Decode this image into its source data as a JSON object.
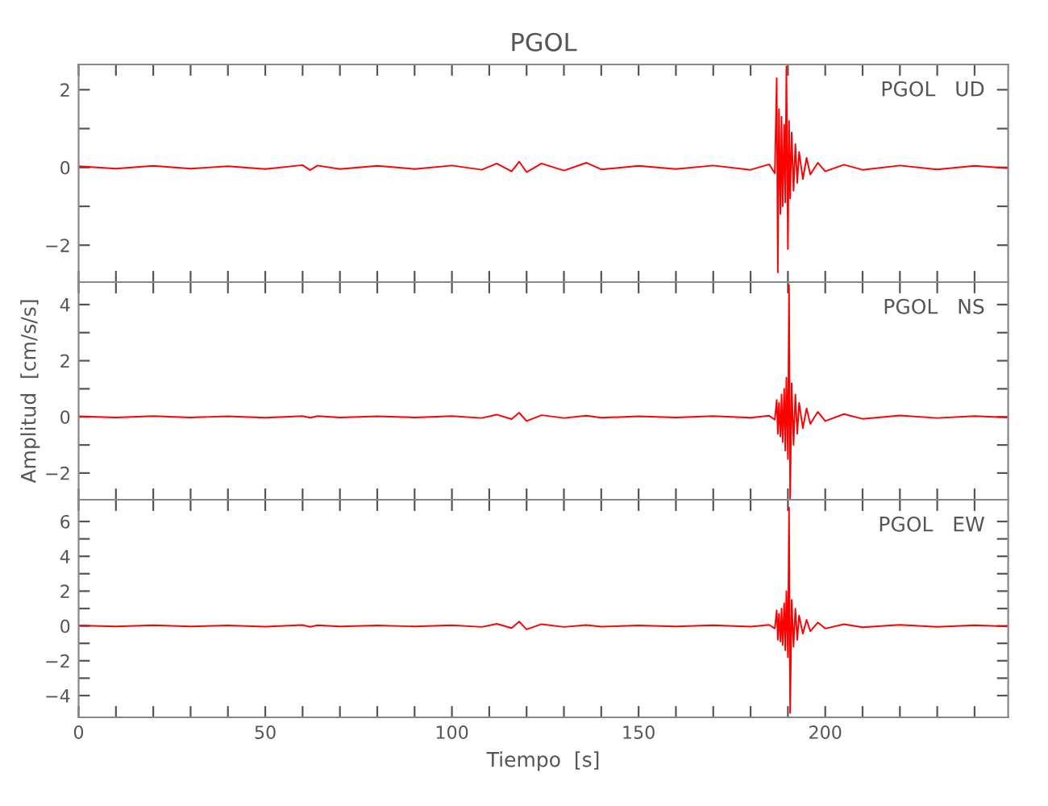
{
  "chart_data": [
    {
      "type": "line",
      "title": "PGOL",
      "annotations": [
        "PGOL   UD"
      ],
      "tick_labels": "y",
      "marker": "none",
      "line_style": "solid",
      "grid": false,
      "legend": false,
      "x": [
        0,
        10,
        20,
        30,
        40,
        50,
        60,
        62,
        64,
        70,
        80,
        90,
        100,
        108,
        112,
        116,
        118,
        120,
        124,
        130,
        136,
        140,
        150,
        160,
        170,
        180,
        185,
        186.5,
        187,
        187.3,
        187.6,
        188,
        188.3,
        188.6,
        189,
        189.3,
        189.6,
        190,
        190.3,
        190.6,
        191,
        191.5,
        192,
        192.5,
        193,
        194,
        195,
        196,
        198,
        200,
        205,
        210,
        220,
        230,
        240,
        249
      ],
      "series": [
        {
          "color": "#ff0000",
          "values": [
            0.03,
            -0.03,
            0.04,
            -0.03,
            0.03,
            -0.04,
            0.06,
            -0.07,
            0.05,
            -0.04,
            0.04,
            -0.04,
            0.05,
            -0.06,
            0.1,
            -0.1,
            0.15,
            -0.12,
            0.1,
            -0.08,
            0.12,
            -0.05,
            0.04,
            -0.04,
            0.05,
            -0.06,
            0.08,
            -0.15,
            2.3,
            -2.7,
            1.5,
            -1.2,
            1.3,
            -1.0,
            1.1,
            -0.9,
            2.6,
            -2.1,
            1.2,
            -0.8,
            0.9,
            -0.6,
            0.6,
            -0.4,
            0.4,
            -0.3,
            0.25,
            -0.18,
            0.12,
            -0.1,
            0.07,
            -0.06,
            0.05,
            -0.05,
            0.04,
            -0.02
          ]
        }
      ],
      "xlim": [
        0,
        249
      ],
      "xticks": [
        0,
        {
          "value": 10,
          "label": null
        },
        {
          "value": 20,
          "label": null
        },
        {
          "value": 30,
          "label": null
        },
        {
          "value": 40,
          "label": null
        },
        50,
        {
          "value": 60,
          "label": null
        },
        {
          "value": 70,
          "label": null
        },
        {
          "value": 80,
          "label": null
        },
        {
          "value": 90,
          "label": null
        },
        100,
        {
          "value": 110,
          "label": null
        },
        {
          "value": 120,
          "label": null
        },
        {
          "value": 130,
          "label": null
        },
        {
          "value": 140,
          "label": null
        },
        150,
        {
          "value": 160,
          "label": null
        },
        {
          "value": 170,
          "label": null
        },
        {
          "value": 180,
          "label": null
        },
        {
          "value": 190,
          "label": null
        },
        200,
        {
          "value": 210,
          "label": null
        },
        {
          "value": 220,
          "label": null
        },
        {
          "value": 230,
          "label": null
        },
        {
          "value": 240,
          "label": null
        }
      ],
      "ylim": [
        -2.95,
        2.65
      ],
      "yticks": [
        {
          "value": -2,
          "label": "−2"
        },
        {
          "value": -1,
          "label": null
        },
        0,
        {
          "value": 1,
          "label": null
        },
        2
      ]
    },
    {
      "type": "line",
      "ylabel": "Amplitud  [cm/s/s]",
      "annotations": [
        "PGOL   NS"
      ],
      "tick_labels": "y",
      "marker": "none",
      "line_style": "solid",
      "grid": false,
      "legend": false,
      "x": [
        0,
        10,
        20,
        30,
        40,
        50,
        60,
        62,
        64,
        70,
        80,
        90,
        100,
        108,
        112,
        116,
        118,
        120,
        124,
        130,
        136,
        140,
        150,
        160,
        170,
        180,
        185,
        186.5,
        187,
        187.3,
        187.6,
        188,
        188.3,
        188.6,
        189,
        189.3,
        189.6,
        190,
        190.3,
        190.6,
        191,
        191.5,
        192,
        192.5,
        193,
        194,
        195,
        196,
        198,
        200,
        205,
        210,
        220,
        230,
        240,
        249
      ],
      "series": [
        {
          "color": "#ff0000",
          "values": [
            0.02,
            -0.02,
            0.03,
            -0.02,
            0.02,
            -0.03,
            0.03,
            -0.03,
            0.03,
            -0.02,
            0.02,
            -0.02,
            0.03,
            -0.04,
            0.08,
            -0.08,
            0.15,
            -0.15,
            0.06,
            -0.04,
            0.04,
            -0.03,
            0.02,
            -0.02,
            0.03,
            -0.03,
            0.04,
            -0.1,
            0.6,
            -0.6,
            0.5,
            -0.7,
            0.8,
            -0.9,
            1.0,
            -1.2,
            1.4,
            -1.5,
            4.7,
            -2.9,
            1.2,
            -1.0,
            0.8,
            -0.6,
            0.5,
            -0.4,
            0.3,
            -0.25,
            0.18,
            -0.15,
            0.1,
            -0.07,
            0.05,
            -0.04,
            0.03,
            -0.02
          ]
        }
      ],
      "xlim": [
        0,
        249
      ],
      "xticks": [
        0,
        {
          "value": 10,
          "label": null
        },
        {
          "value": 20,
          "label": null
        },
        {
          "value": 30,
          "label": null
        },
        {
          "value": 40,
          "label": null
        },
        50,
        {
          "value": 60,
          "label": null
        },
        {
          "value": 70,
          "label": null
        },
        {
          "value": 80,
          "label": null
        },
        {
          "value": 90,
          "label": null
        },
        100,
        {
          "value": 110,
          "label": null
        },
        {
          "value": 120,
          "label": null
        },
        {
          "value": 130,
          "label": null
        },
        {
          "value": 140,
          "label": null
        },
        150,
        {
          "value": 160,
          "label": null
        },
        {
          "value": 170,
          "label": null
        },
        {
          "value": 180,
          "label": null
        },
        {
          "value": 190,
          "label": null
        },
        200,
        {
          "value": 210,
          "label": null
        },
        {
          "value": 220,
          "label": null
        },
        {
          "value": 230,
          "label": null
        },
        {
          "value": 240,
          "label": null
        }
      ],
      "ylim": [
        -2.95,
        4.8
      ],
      "yticks": [
        {
          "value": -2,
          "label": "−2"
        },
        {
          "value": -1,
          "label": null
        },
        0,
        {
          "value": 1,
          "label": null
        },
        2,
        {
          "value": 3,
          "label": null
        },
        4
      ]
    },
    {
      "type": "line",
      "xlabel": "Tiempo  [s]",
      "annotations": [
        "PGOL   EW"
      ],
      "marker": "none",
      "line_style": "solid",
      "grid": false,
      "legend": false,
      "x": [
        0,
        10,
        20,
        30,
        40,
        50,
        60,
        62,
        64,
        70,
        80,
        90,
        100,
        108,
        112,
        116,
        118,
        120,
        124,
        130,
        136,
        140,
        150,
        160,
        170,
        180,
        185,
        186.5,
        187,
        187.3,
        187.6,
        188,
        188.3,
        188.6,
        189,
        189.3,
        189.6,
        190,
        190.3,
        190.6,
        191,
        191.5,
        192,
        192.5,
        193,
        194,
        195,
        196,
        198,
        200,
        205,
        210,
        220,
        230,
        240,
        249
      ],
      "series": [
        {
          "color": "#ff0000",
          "values": [
            0.03,
            -0.03,
            0.04,
            -0.03,
            0.03,
            -0.04,
            0.05,
            -0.05,
            0.04,
            -0.03,
            0.03,
            -0.03,
            0.04,
            -0.06,
            0.12,
            -0.12,
            0.25,
            -0.2,
            0.1,
            -0.06,
            0.05,
            -0.04,
            0.03,
            -0.03,
            0.04,
            -0.04,
            0.06,
            -0.15,
            0.9,
            -0.8,
            0.7,
            -0.9,
            1.0,
            -1.1,
            1.3,
            -1.4,
            2.0,
            -1.8,
            6.8,
            -5.0,
            1.5,
            -1.2,
            1.0,
            -0.8,
            0.6,
            -0.45,
            0.35,
            -0.3,
            0.2,
            -0.15,
            0.1,
            -0.08,
            0.06,
            -0.05,
            0.04,
            -0.03
          ]
        }
      ],
      "xlim": [
        0,
        249
      ],
      "xticks": [
        0,
        {
          "value": 10,
          "label": null
        },
        {
          "value": 20,
          "label": null
        },
        {
          "value": 30,
          "label": null
        },
        {
          "value": 40,
          "label": null
        },
        50,
        {
          "value": 60,
          "label": null
        },
        {
          "value": 70,
          "label": null
        },
        {
          "value": 80,
          "label": null
        },
        {
          "value": 90,
          "label": null
        },
        100,
        {
          "value": 110,
          "label": null
        },
        {
          "value": 120,
          "label": null
        },
        {
          "value": 130,
          "label": null
        },
        {
          "value": 140,
          "label": null
        },
        150,
        {
          "value": 160,
          "label": null
        },
        {
          "value": 170,
          "label": null
        },
        {
          "value": 180,
          "label": null
        },
        {
          "value": 190,
          "label": null
        },
        200,
        {
          "value": 210,
          "label": null
        },
        {
          "value": 220,
          "label": null
        },
        {
          "value": 230,
          "label": null
        },
        {
          "value": 240,
          "label": null
        }
      ],
      "ylim": [
        -5.25,
        7.25
      ],
      "yticks": [
        {
          "value": -4,
          "label": "−4"
        },
        {
          "value": -3,
          "label": null
        },
        {
          "value": -2,
          "label": "−2"
        },
        {
          "value": -1,
          "label": null
        },
        0,
        {
          "value": 1,
          "label": null
        },
        2,
        {
          "value": 3,
          "label": null
        },
        4,
        {
          "value": 5,
          "label": null
        },
        6
      ]
    }
  ]
}
